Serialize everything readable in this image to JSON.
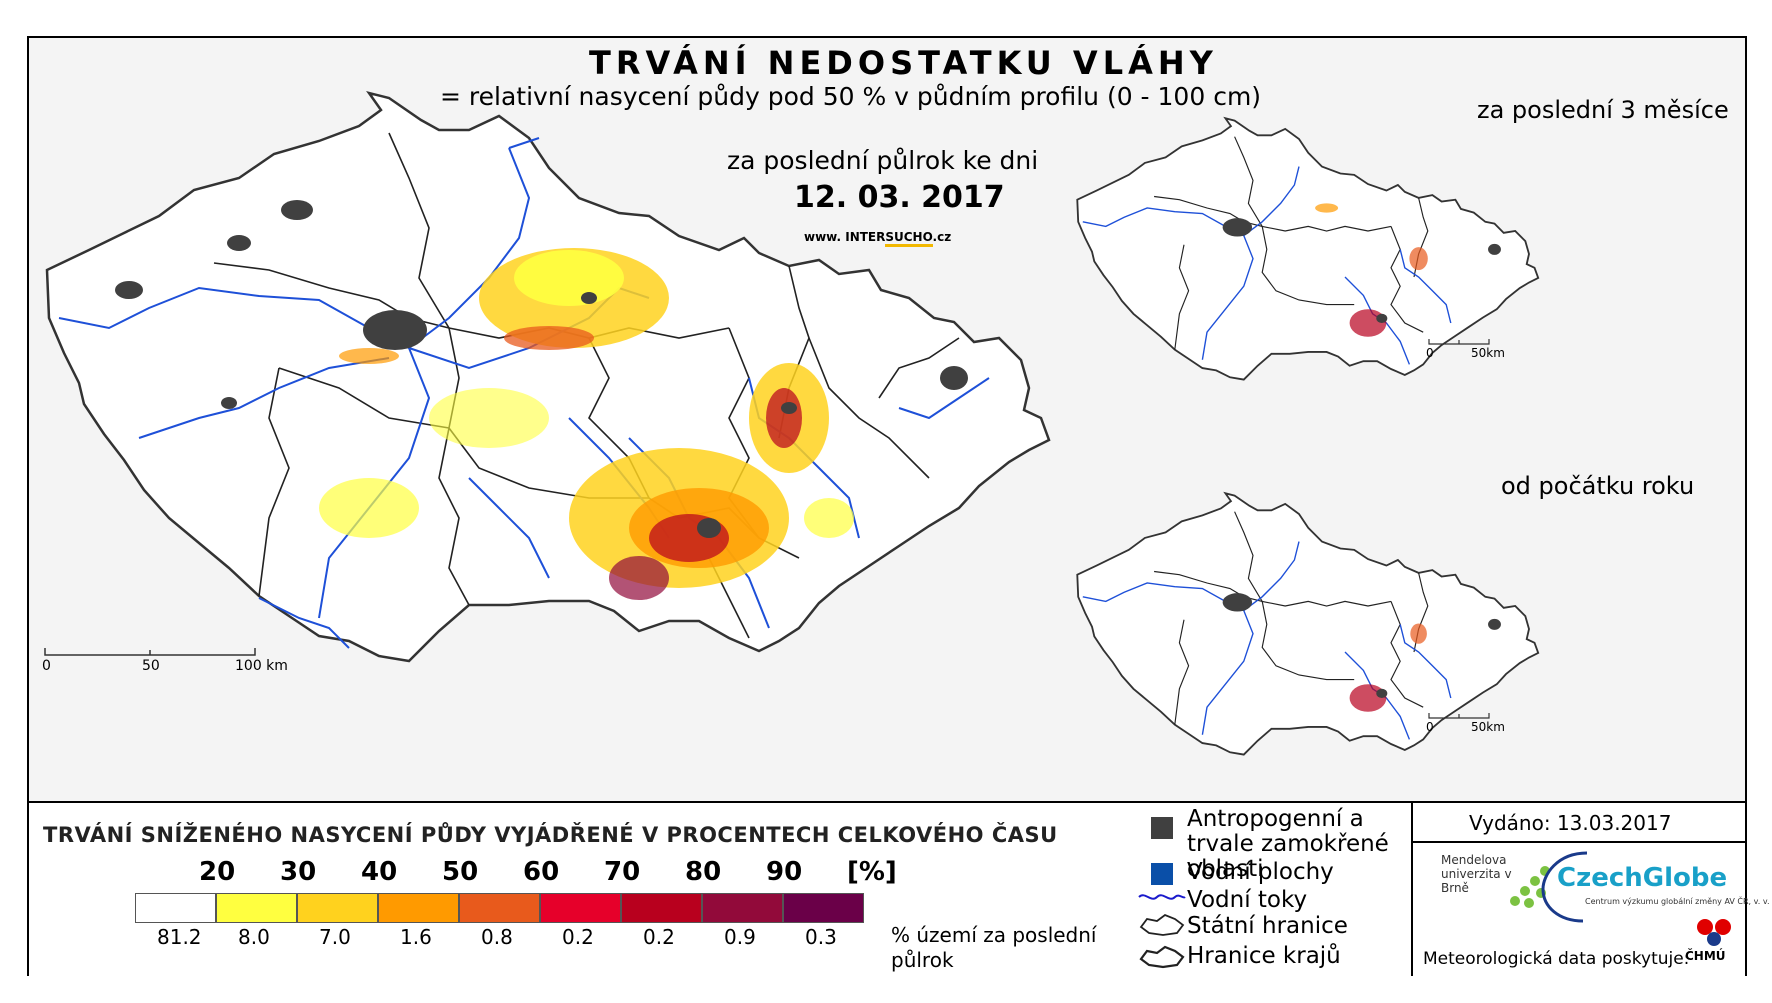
{
  "header": {
    "title": "TRVÁNÍ NEDOSTATKU VLÁHY",
    "subtitle": "= relativní nasycení půdy pod 50 % v půdním profilu (0 - 100 cm)",
    "period_label": "za poslední půlrok ke dni",
    "date": "12. 03. 2017",
    "website_prefix": "www. INTER",
    "website_highlight": "SUCHO",
    "website_suffix": ".cz"
  },
  "main_map": {
    "scale_labels": [
      "0",
      "50",
      "100 km"
    ]
  },
  "insets": [
    {
      "title": "za poslední 3 měsíce",
      "scale_labels": [
        "0",
        "50km"
      ]
    },
    {
      "title": "od počátku roku",
      "scale_labels": [
        "0",
        "50km"
      ]
    }
  ],
  "legend": {
    "title": "TRVÁNÍ SNÍŽENÉHO NASYCENÍ PŮDY VYJÁDŘENÉ V PROCENTECH CELKOVÉHO ČASU",
    "thresholds": [
      "20",
      "30",
      "40",
      "50",
      "60",
      "70",
      "80",
      "90",
      "[%]"
    ],
    "classes": [
      {
        "color": "#ffffff",
        "share": "81.2"
      },
      {
        "color": "#ffff40",
        "share": "8.0"
      },
      {
        "color": "#ffd21e",
        "share": "7.0"
      },
      {
        "color": "#ff9a00",
        "share": "1.6"
      },
      {
        "color": "#e85a1c",
        "share": "0.8"
      },
      {
        "color": "#e6002a",
        "share": "0.2"
      },
      {
        "color": "#b8001e",
        "share": "0.2"
      },
      {
        "color": "#920a3a",
        "share": "0.9"
      },
      {
        "color": "#6a0048",
        "share": "0.3"
      }
    ],
    "share_note": "% území za poslední půlrok"
  },
  "map_legend": {
    "items": [
      {
        "icon": "urban-area-square",
        "label": "Antropogenní a trvale zamokřené oblasti",
        "color": "#404040"
      },
      {
        "icon": "water-area-square",
        "label": "Vodní plochy",
        "color": "#0a4fa8"
      },
      {
        "icon": "river-line",
        "label": "Vodní toky",
        "color": "#1a1acc"
      },
      {
        "icon": "state-border-outline",
        "label": "Státní hranice"
      },
      {
        "icon": "region-border-outline",
        "label": "Hranice krajů"
      }
    ]
  },
  "footer": {
    "issued": "Vydáno: 13.03.2017",
    "mendel": "Mendelova univerzita v Brně",
    "czechglobe": "CzechGlobe",
    "czechglobe_sub": "Centrum výzkumu globální změny AV ČR, v. v. i.",
    "meteo": "Meteorologická data poskytuje:",
    "chmu": "ČHMÚ"
  }
}
